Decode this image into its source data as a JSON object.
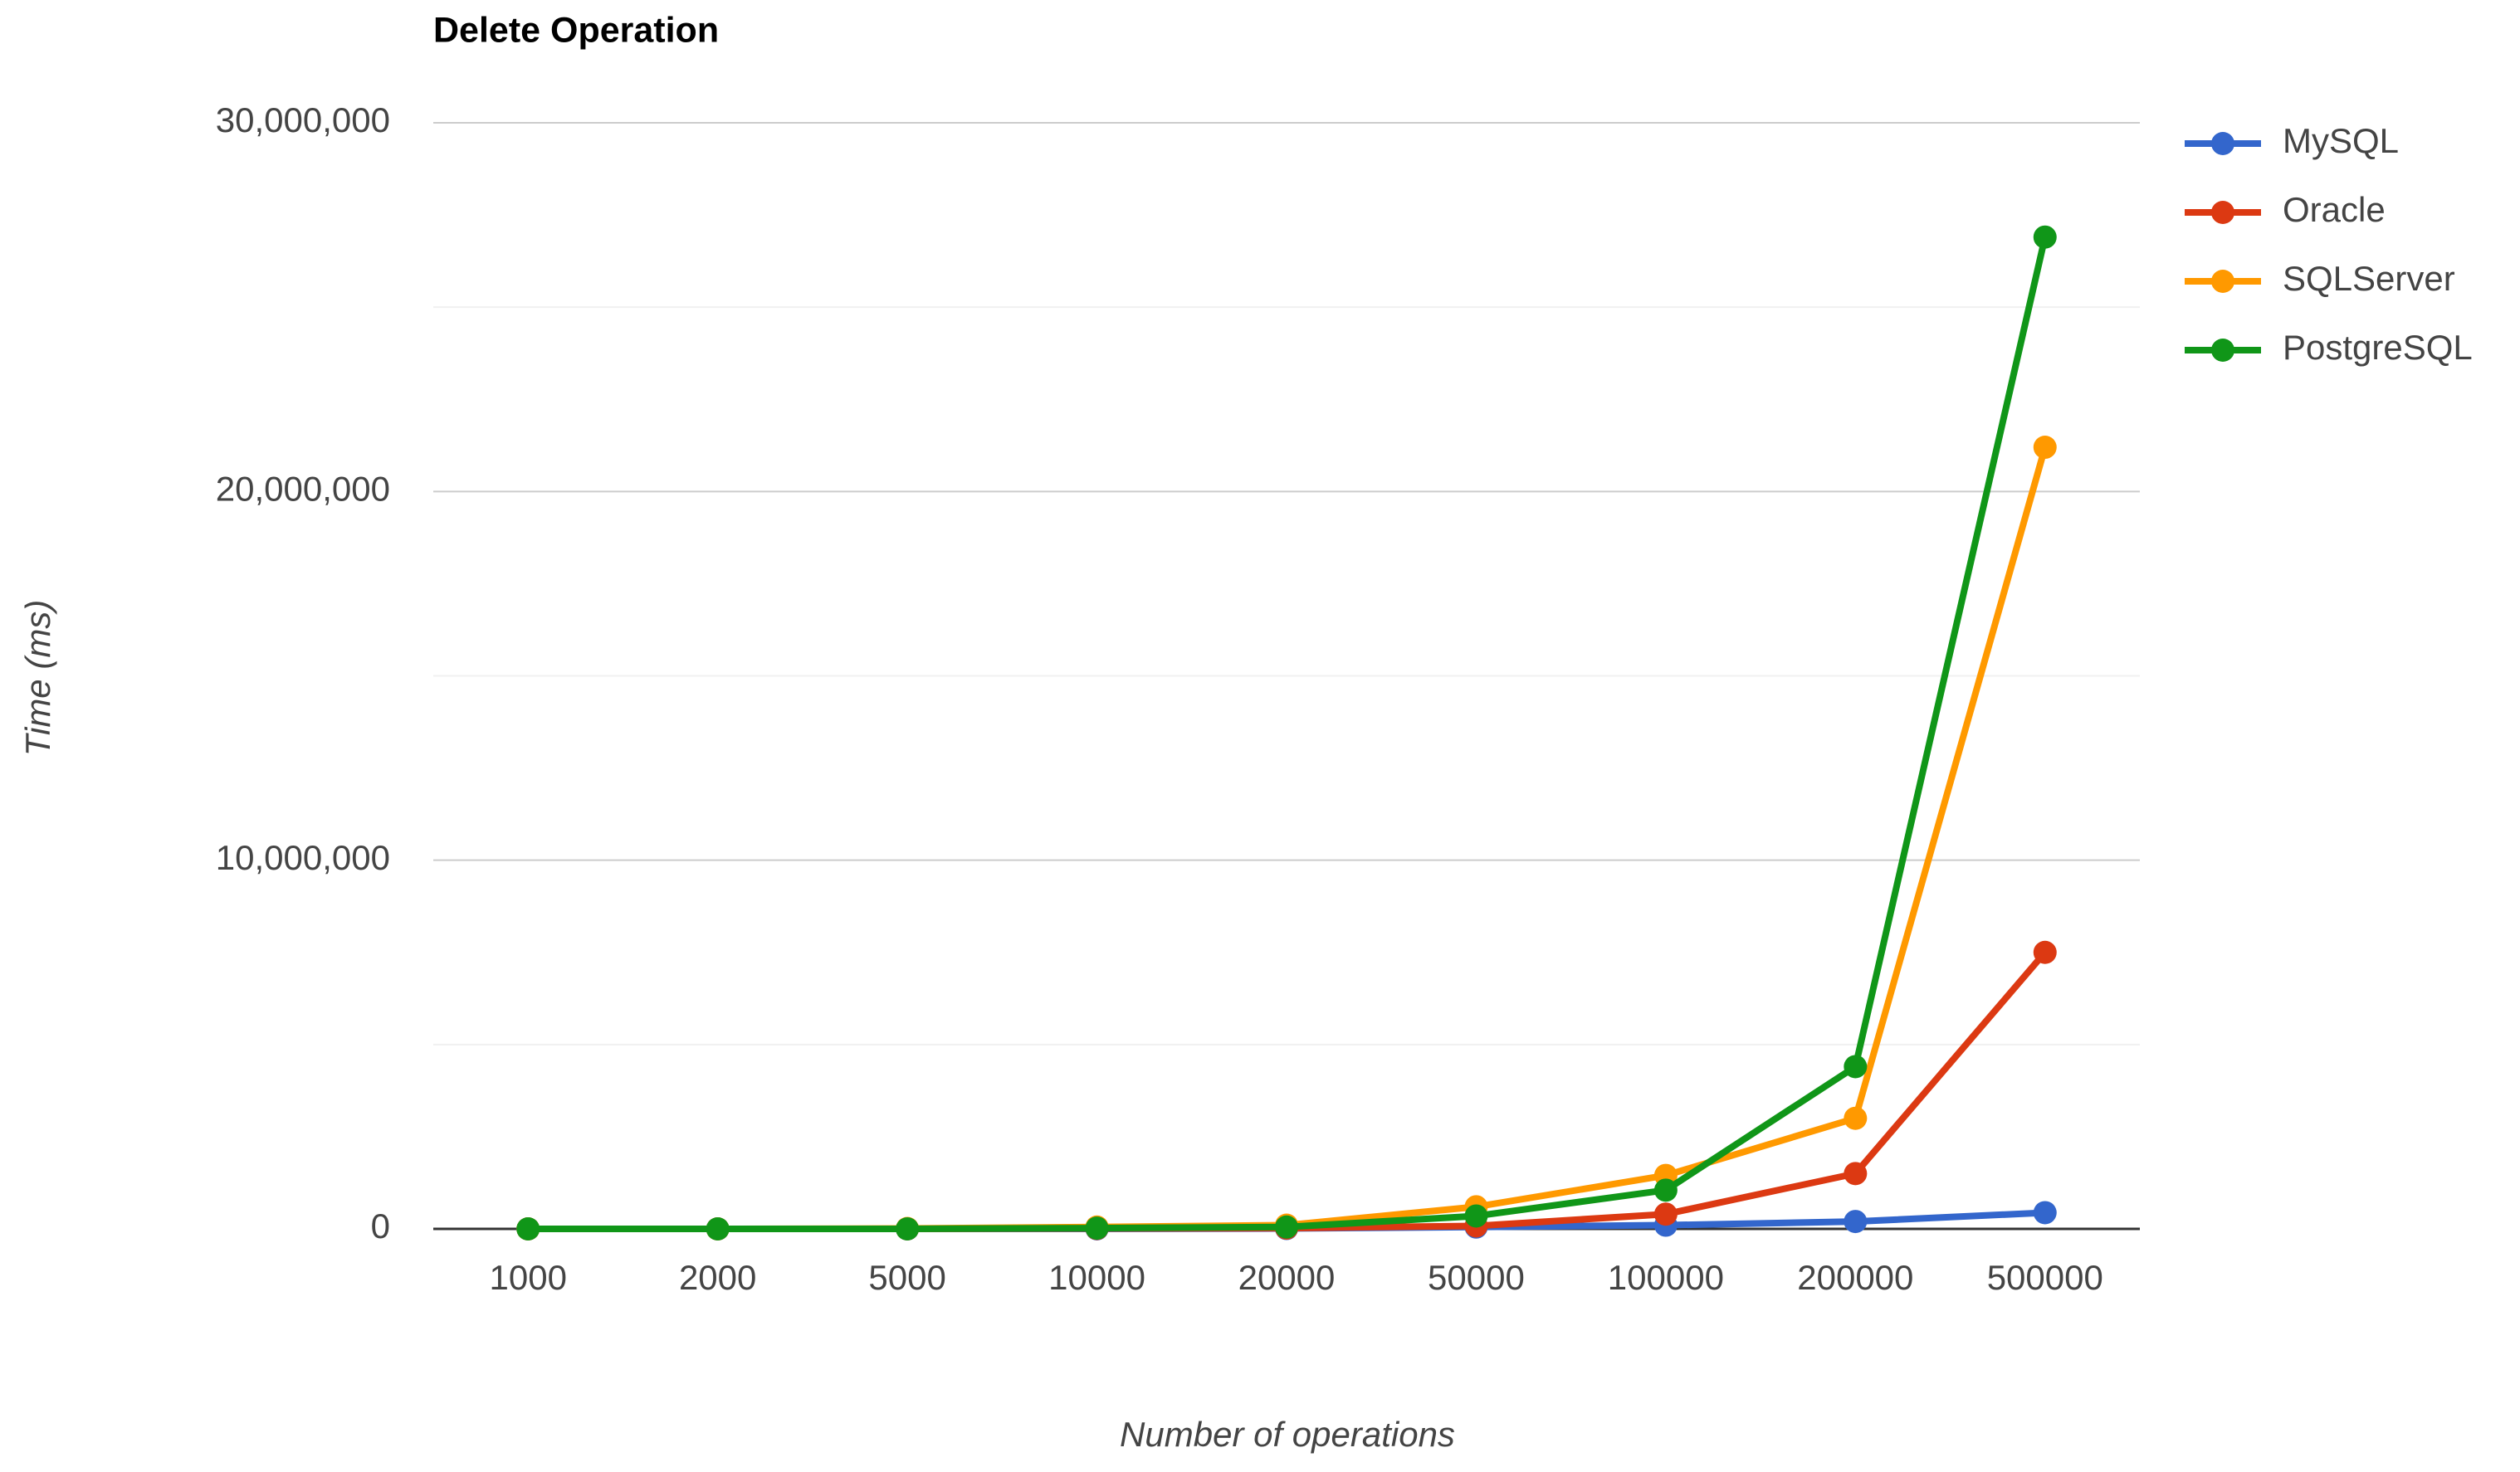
{
  "chart_data": {
    "type": "line",
    "title": "Delete Operation",
    "x_label": "Number of operations",
    "y_label": "Time (ms)",
    "categories": [
      "1000",
      "2000",
      "5000",
      "10000",
      "20000",
      "50000",
      "100000",
      "200000",
      "500000"
    ],
    "series": [
      {
        "name": "MySQL",
        "color": "#3366cc",
        "values": [
          0,
          0,
          0,
          0,
          10000,
          50000,
          100000,
          200000,
          440000
        ]
      },
      {
        "name": "Oracle",
        "color": "#dc3912",
        "values": [
          0,
          0,
          0,
          10000,
          20000,
          80000,
          400000,
          1500000,
          7500000
        ]
      },
      {
        "name": "SQLServer",
        "color": "#ff9900",
        "values": [
          0,
          0,
          10000,
          50000,
          100000,
          600000,
          1450000,
          3000000,
          21200000
        ]
      },
      {
        "name": "PostgreSQL",
        "color": "#109618",
        "values": [
          0,
          0,
          0,
          20000,
          50000,
          350000,
          1050000,
          4400000,
          26900000
        ]
      }
    ],
    "ylim": [
      0,
      30000000
    ],
    "yticks": [
      {
        "value": 0,
        "label": "0"
      },
      {
        "value": 10000000,
        "label": "10,000,000"
      },
      {
        "value": 20000000,
        "label": "20,000,000"
      },
      {
        "value": 30000000,
        "label": "30,000,000"
      }
    ],
    "minor_yticks": [
      5000000,
      15000000,
      25000000
    ],
    "grid": true,
    "legend": "right"
  }
}
